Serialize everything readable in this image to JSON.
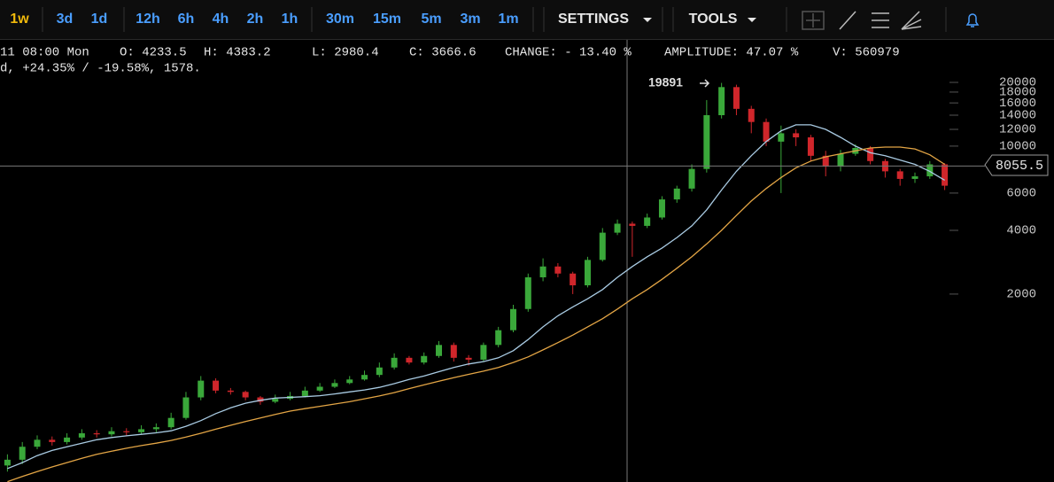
{
  "toolbar": {
    "intervals": [
      "1w",
      "3d",
      "1d",
      "12h",
      "6h",
      "4h",
      "2h",
      "1h",
      "30m",
      "15m",
      "5m",
      "3m",
      "1m"
    ],
    "active_index": 0,
    "menus": [
      "SETTINGS",
      "TOOLS"
    ]
  },
  "info": {
    "fields": [
      "11 08:00 Mon",
      "O: 4233.5",
      "H: 4383.2",
      "L: 2980.4",
      "C: 3666.6",
      "CHANGE: - 13.40 %",
      "AMPLITUDE: 47.07 %",
      "V: 560979"
    ],
    "line2": "d, +24.35% / -19.58%, 1578."
  },
  "chart_data": {
    "type": "candlestick",
    "log_scale": true,
    "grid": false,
    "ylim": [
      259,
      21600
    ],
    "yticks": [
      2000,
      4000,
      6000,
      10000,
      12000,
      14000,
      16000,
      18000,
      20000
    ],
    "up_color": "#3aa83a",
    "down_color": "#d0262b",
    "open": [
      310,
      330,
      380,
      410,
      400,
      420,
      440,
      435,
      450,
      445,
      460,
      470,
      520,
      650,
      780,
      700,
      690,
      650,
      620,
      640,
      660,
      700,
      730,
      760,
      790,
      830,
      900,
      1000,
      950,
      1020,
      1150,
      1000,
      980,
      1150,
      1350,
      1700,
      2400,
      2700,
      2500,
      2200,
      2900,
      3900,
      4300,
      4200,
      4600,
      5600,
      6300,
      7800,
      14000,
      19000,
      15000,
      13000,
      10500,
      11500,
      11000,
      9000,
      8000,
      9200,
      9800,
      8500,
      7600,
      7000,
      7200,
      8200
    ],
    "high": [
      350,
      400,
      430,
      425,
      440,
      460,
      455,
      470,
      465,
      480,
      490,
      550,
      690,
      820,
      800,
      720,
      700,
      660,
      670,
      690,
      730,
      760,
      790,
      820,
      870,
      950,
      1050,
      1020,
      1060,
      1200,
      1180,
      1030,
      1180,
      1400,
      1780,
      2500,
      2950,
      2800,
      2550,
      3000,
      4100,
      4500,
      4400,
      4800,
      5800,
      6500,
      8200,
      16500,
      19891,
      19500,
      15500,
      13500,
      12500,
      12000,
      11300,
      9500,
      9600,
      10200,
      10000,
      8700,
      7800,
      7500,
      8500,
      8300
    ],
    "low": [
      290,
      315,
      370,
      385,
      390,
      410,
      420,
      425,
      430,
      435,
      445,
      460,
      510,
      630,
      680,
      670,
      630,
      600,
      610,
      630,
      650,
      690,
      720,
      750,
      780,
      810,
      880,
      930,
      930,
      1000,
      960,
      920,
      960,
      1120,
      1320,
      1650,
      2300,
      2400,
      2000,
      2150,
      2850,
      3800,
      3000,
      4100,
      4500,
      5400,
      6100,
      7500,
      13500,
      14000,
      11500,
      10000,
      6000,
      10000,
      8500,
      7200,
      7600,
      9000,
      8200,
      7100,
      6500,
      6700,
      7000,
      6200
    ],
    "close": [
      330,
      380,
      410,
      400,
      420,
      440,
      435,
      450,
      445,
      460,
      470,
      520,
      650,
      780,
      700,
      690,
      650,
      620,
      640,
      660,
      700,
      730,
      760,
      790,
      830,
      900,
      1000,
      950,
      1020,
      1150,
      1000,
      980,
      1150,
      1350,
      1700,
      2400,
      2700,
      2500,
      2200,
      2900,
      3900,
      4300,
      4200,
      4600,
      5600,
      6300,
      7800,
      14000,
      19000,
      15000,
      13000,
      10500,
      11500,
      11000,
      9000,
      8000,
      9200,
      9800,
      8500,
      7600,
      7000,
      7200,
      8200,
      6500
    ],
    "series": [
      {
        "color": "#a9cbe3",
        "values": [
          300,
          320,
          345,
          365,
          380,
          395,
          410,
          420,
          428,
          435,
          442,
          452,
          475,
          505,
          545,
          580,
          610,
          630,
          645,
          650,
          655,
          662,
          675,
          690,
          705,
          725,
          755,
          790,
          820,
          860,
          900,
          935,
          960,
          1000,
          1080,
          1220,
          1400,
          1580,
          1740,
          1900,
          2100,
          2400,
          2700,
          3000,
          3300,
          3700,
          4200,
          5000,
          6200,
          7600,
          9000,
          10500,
          11800,
          12600,
          12600,
          12000,
          11000,
          10000,
          9300,
          9000,
          8600,
          8200,
          7600,
          6900
        ]
      },
      {
        "color": "#e3a545",
        "values": [
          260,
          275,
          290,
          305,
          320,
          335,
          350,
          362,
          374,
          385,
          395,
          407,
          422,
          440,
          460,
          480,
          500,
          520,
          540,
          560,
          575,
          590,
          605,
          620,
          640,
          660,
          685,
          715,
          745,
          775,
          805,
          835,
          865,
          900,
          950,
          1010,
          1090,
          1180,
          1280,
          1400,
          1530,
          1700,
          1900,
          2100,
          2350,
          2650,
          3000,
          3450,
          4000,
          4700,
          5500,
          6300,
          7100,
          7900,
          8500,
          8900,
          9200,
          9500,
          9800,
          9900,
          9900,
          9700,
          9100,
          8200
        ]
      }
    ],
    "annotation": 19891,
    "crosshair_price": 8055.5
  }
}
